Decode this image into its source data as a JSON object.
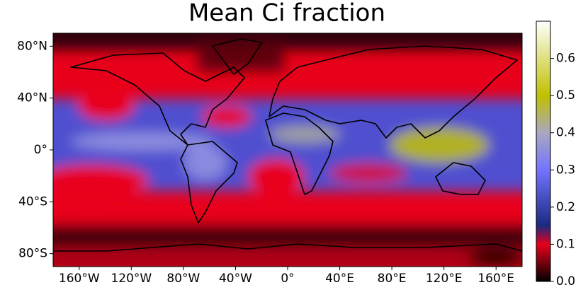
{
  "chart_data": {
    "type": "heatmap",
    "title": "Mean Ci fraction",
    "xlim": [
      -180,
      180
    ],
    "ylim": [
      -90,
      90
    ],
    "xticks": [
      {
        "value": -160,
        "label": "160°W"
      },
      {
        "value": -120,
        "label": "120°W"
      },
      {
        "value": -80,
        "label": "80°W"
      },
      {
        "value": -40,
        "label": "40°W"
      },
      {
        "value": 0,
        "label": "0°"
      },
      {
        "value": 40,
        "label": "40°E"
      },
      {
        "value": 80,
        "label": "80°E"
      },
      {
        "value": 120,
        "label": "120°E"
      },
      {
        "value": 160,
        "label": "160°E"
      }
    ],
    "yticks": [
      {
        "value": 80,
        "label": "80°N"
      },
      {
        "value": 40,
        "label": "40°N"
      },
      {
        "value": 0,
        "label": "0°"
      },
      {
        "value": -40,
        "label": "40°S"
      },
      {
        "value": -80,
        "label": "80°S"
      }
    ],
    "colorbar": {
      "lim": [
        0,
        0.7
      ],
      "ticks": [
        {
          "value": 0,
          "label": "0.0"
        },
        0.1,
        0.2,
        0.3,
        0.4,
        0.5,
        0.6
      ],
      "colormap": [
        [
          0,
          "#000000"
        ],
        [
          0.1,
          "#e8001a"
        ],
        [
          0.15,
          "#1a2a80"
        ],
        [
          0.3,
          "#7474ff"
        ],
        [
          0.4,
          "#a8a8c0"
        ],
        [
          0.5,
          "#c0c000"
        ],
        [
          0.7,
          "#ffffff"
        ]
      ]
    }
  }
}
